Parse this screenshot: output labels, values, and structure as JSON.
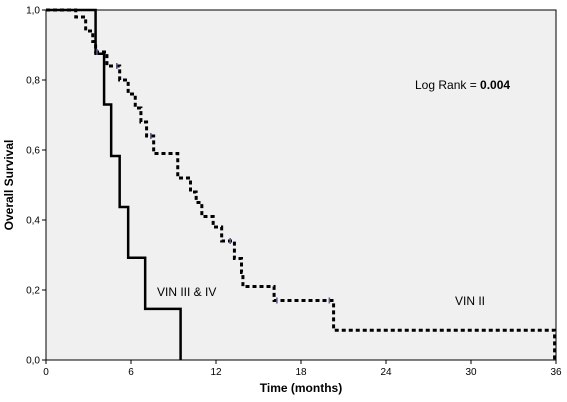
{
  "chart_data": {
    "type": "line",
    "title": "",
    "xlabel": "Time (months)",
    "ylabel": "Overall Survival",
    "xlim": [
      0,
      36
    ],
    "ylim": [
      0,
      1
    ],
    "x_ticks": [
      0,
      6,
      12,
      18,
      24,
      30,
      36
    ],
    "x_tick_labels": [
      "0",
      "6",
      "12",
      "18",
      "24",
      "30",
      "36"
    ],
    "y_ticks": [
      0,
      0.2,
      0.4,
      0.6,
      0.8,
      1.0
    ],
    "y_tick_labels": [
      "0,0",
      "0,2",
      "0,4",
      "0,6",
      "0,8",
      "1,0"
    ],
    "grid": false,
    "plot_background": "#f0f0f0",
    "series": [
      {
        "name": "VIN III & IV",
        "style": "solid",
        "color": "#000000",
        "steps": [
          {
            "x": 0,
            "y": 1.0
          },
          {
            "x": 3.5,
            "y": 0.875
          },
          {
            "x": 4.1,
            "y": 0.73
          },
          {
            "x": 4.6,
            "y": 0.583
          },
          {
            "x": 5.2,
            "y": 0.437
          },
          {
            "x": 5.8,
            "y": 0.292
          },
          {
            "x": 7.0,
            "y": 0.146
          },
          {
            "x": 9.5,
            "y": 0.0
          }
        ],
        "end_x": 9.5
      },
      {
        "name": "VIN II",
        "style": "dashed",
        "color": "#000000",
        "steps": [
          {
            "x": 0,
            "y": 1.0
          },
          {
            "x": 2.1,
            "y": 0.98
          },
          {
            "x": 2.8,
            "y": 0.94
          },
          {
            "x": 3.3,
            "y": 0.91
          },
          {
            "x": 3.5,
            "y": 0.88
          },
          {
            "x": 4.3,
            "y": 0.84
          },
          {
            "x": 5.2,
            "y": 0.8
          },
          {
            "x": 5.8,
            "y": 0.76
          },
          {
            "x": 6.3,
            "y": 0.72
          },
          {
            "x": 6.7,
            "y": 0.68
          },
          {
            "x": 7.1,
            "y": 0.64
          },
          {
            "x": 7.6,
            "y": 0.59
          },
          {
            "x": 9.3,
            "y": 0.52
          },
          {
            "x": 10.2,
            "y": 0.48
          },
          {
            "x": 10.6,
            "y": 0.45
          },
          {
            "x": 11.0,
            "y": 0.41
          },
          {
            "x": 11.8,
            "y": 0.38
          },
          {
            "x": 12.4,
            "y": 0.34
          },
          {
            "x": 13.3,
            "y": 0.29
          },
          {
            "x": 13.8,
            "y": 0.25
          },
          {
            "x": 13.9,
            "y": 0.21
          },
          {
            "x": 16.1,
            "y": 0.17
          },
          {
            "x": 20.3,
            "y": 0.085
          },
          {
            "x": 35.9,
            "y": 0.0
          }
        ],
        "end_x": 35.9,
        "censor_marks": [
          {
            "x": 3.6,
            "y": 0.88
          },
          {
            "x": 5.0,
            "y": 0.84
          },
          {
            "x": 7.4,
            "y": 0.64
          },
          {
            "x": 13.0,
            "y": 0.34
          },
          {
            "x": 16.3,
            "y": 0.17
          },
          {
            "x": 20.0,
            "y": 0.17
          }
        ]
      }
    ],
    "annotations": {
      "log_rank_label": "Log Rank = ",
      "log_rank_value": "0.004",
      "series_label_1": "VIN III & IV",
      "series_label_2": "VIN II"
    }
  }
}
